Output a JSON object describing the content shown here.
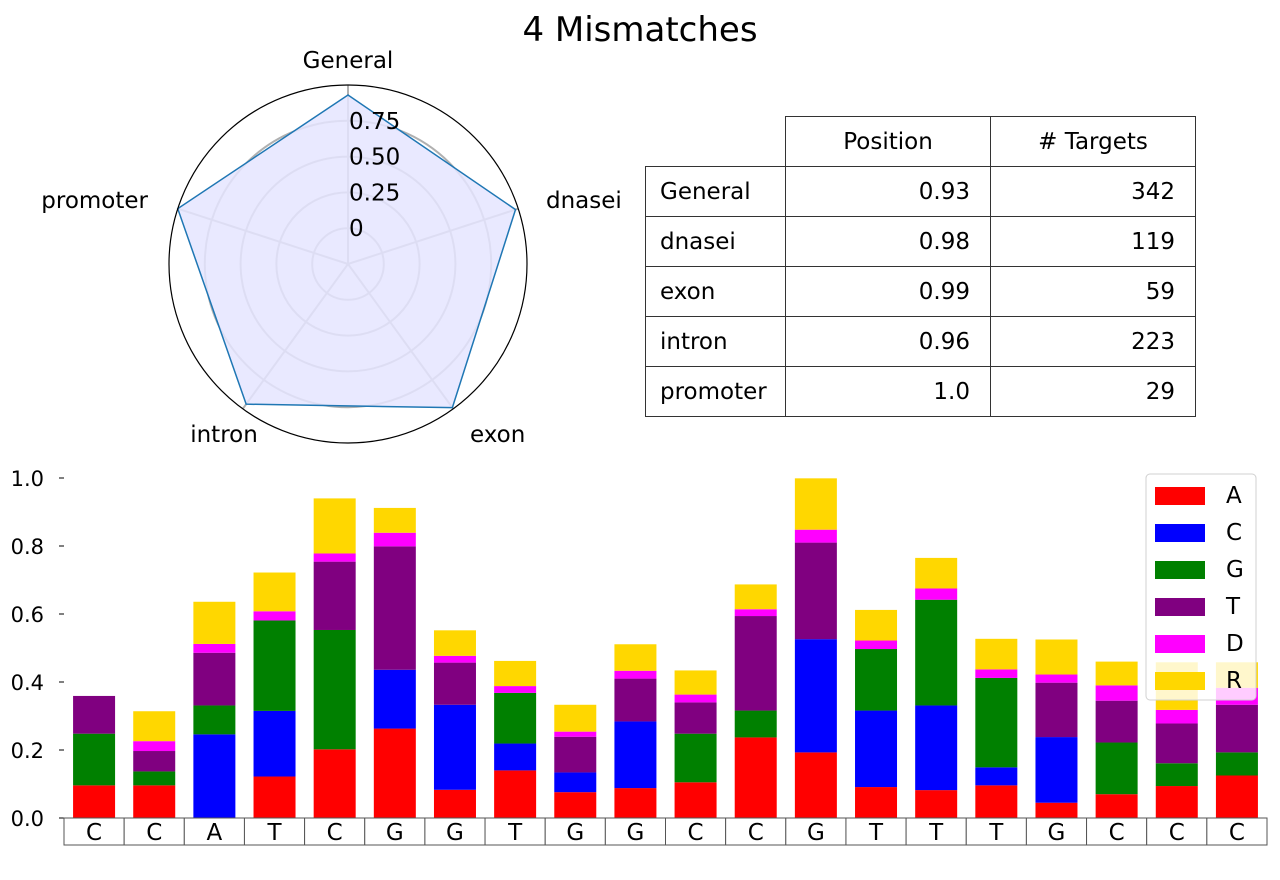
{
  "title": "4 Mismatches",
  "colors": {
    "radar_line": "#1f77b4",
    "radar_fill": "#e5e5ff",
    "radar_grid": "#b0b0b0",
    "A": "#ff0000",
    "C": "#0000ff",
    "G": "#008000",
    "T": "#800080",
    "D": "#ff00ff",
    "R": "#ffd700"
  },
  "table": {
    "headers": [
      "Position",
      "# Targets"
    ],
    "rows": [
      {
        "name": "General",
        "position": "0.93",
        "targets": "342"
      },
      {
        "name": "dnasei",
        "position": "0.98",
        "targets": "119"
      },
      {
        "name": "exon",
        "position": "0.99",
        "targets": "59"
      },
      {
        "name": "intron",
        "position": "0.96",
        "targets": "223"
      },
      {
        "name": "promoter",
        "position": "1.0",
        "targets": "29"
      }
    ]
  },
  "chart_data": [
    {
      "type": "radar",
      "categories": [
        "General",
        "dnasei",
        "exon",
        "intron",
        "promoter"
      ],
      "values": [
        0.93,
        0.98,
        0.99,
        0.96,
        1.0
      ],
      "r_ticks": [
        "0",
        "0.25",
        "0.50",
        "0.75"
      ],
      "r_tick_values": [
        0,
        0.25,
        0.5,
        0.75
      ],
      "rlim": [
        -0.25,
        1.0
      ],
      "grid": true
    },
    {
      "type": "bar",
      "stacked": true,
      "categories": [
        "C",
        "C",
        "A",
        "T",
        "C",
        "G",
        "G",
        "T",
        "G",
        "G",
        "C",
        "C",
        "G",
        "T",
        "T",
        "T",
        "G",
        "C",
        "C",
        "C"
      ],
      "ylim": [
        0,
        1.0
      ],
      "yticks": [
        "0.0",
        "0.2",
        "0.4",
        "0.6",
        "0.8",
        "1.0"
      ],
      "ytick_values": [
        0,
        0.2,
        0.4,
        0.6,
        0.8,
        1.0
      ],
      "legend_position": "top-right",
      "series": [
        {
          "name": "A",
          "values": [
            0.096,
            0.096,
            0.0,
            0.122,
            0.202,
            0.263,
            0.083,
            0.14,
            0.076,
            0.088,
            0.105,
            0.237,
            0.193,
            0.091,
            0.082,
            0.096,
            0.045,
            0.07,
            0.094,
            0.125
          ]
        },
        {
          "name": "C",
          "values": [
            0.0,
            0.0,
            0.246,
            0.193,
            0.0,
            0.173,
            0.25,
            0.079,
            0.058,
            0.196,
            0.0,
            0.0,
            0.333,
            0.225,
            0.249,
            0.053,
            0.193,
            0.0,
            0.0,
            0.0
          ]
        },
        {
          "name": "G",
          "values": [
            0.152,
            0.041,
            0.085,
            0.266,
            0.351,
            0.0,
            0.0,
            0.149,
            0.0,
            0.0,
            0.143,
            0.079,
            0.0,
            0.181,
            0.311,
            0.263,
            0.0,
            0.152,
            0.067,
            0.068
          ]
        },
        {
          "name": "T",
          "values": [
            0.111,
            0.06,
            0.155,
            0.0,
            0.201,
            0.363,
            0.124,
            0.0,
            0.105,
            0.126,
            0.092,
            0.278,
            0.284,
            0.0,
            0.0,
            0.0,
            0.16,
            0.123,
            0.117,
            0.14
          ]
        },
        {
          "name": "D",
          "values": [
            0.0,
            0.029,
            0.026,
            0.027,
            0.024,
            0.04,
            0.02,
            0.02,
            0.015,
            0.023,
            0.023,
            0.02,
            0.038,
            0.025,
            0.033,
            0.025,
            0.024,
            0.045,
            0.04,
            0.05
          ]
        },
        {
          "name": "R",
          "values": [
            0.0,
            0.088,
            0.124,
            0.114,
            0.162,
            0.073,
            0.075,
            0.074,
            0.079,
            0.078,
            0.071,
            0.073,
            0.151,
            0.09,
            0.09,
            0.09,
            0.103,
            0.07,
            0.14,
            0.075
          ]
        }
      ]
    }
  ]
}
